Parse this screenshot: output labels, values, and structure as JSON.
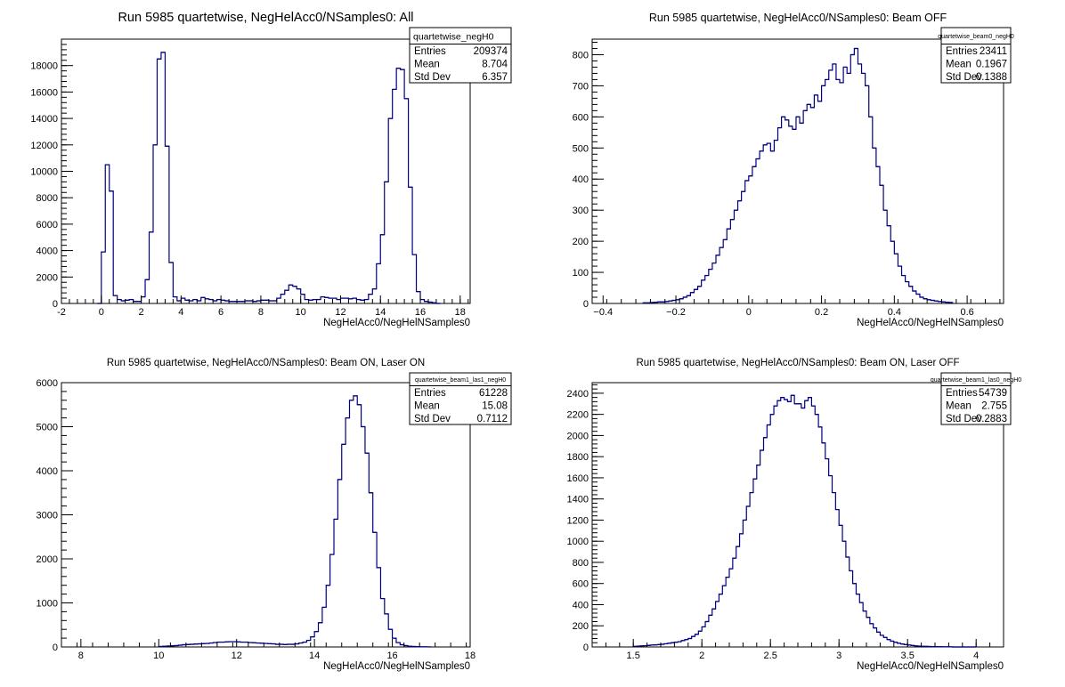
{
  "chart_data": [
    {
      "type": "histogram",
      "title": "Run 5985 quartetwise, NegHelAcc0/NSamples0: All",
      "xlabel": "NegHelAcc0/NegHelNSamples0",
      "xlim": [
        -2,
        18.5
      ],
      "ylim": [
        0,
        20000
      ],
      "xticks": [
        -2,
        0,
        2,
        4,
        6,
        8,
        10,
        12,
        14,
        16,
        18
      ],
      "yticks": [
        0,
        2000,
        4000,
        6000,
        8000,
        10000,
        12000,
        14000,
        16000,
        18000
      ],
      "bin_width": 0.2,
      "x": [
        -0.2,
        0.0,
        0.2,
        0.4,
        0.6,
        0.8,
        1.0,
        1.2,
        1.4,
        1.6,
        1.8,
        2.0,
        2.2,
        2.4,
        2.6,
        2.8,
        3.0,
        3.2,
        3.4,
        3.6,
        3.8,
        4.0,
        4.2,
        4.4,
        4.6,
        4.8,
        5.0,
        5.2,
        5.4,
        5.6,
        5.8,
        6.0,
        6.2,
        6.4,
        6.6,
        6.8,
        7.0,
        7.2,
        7.4,
        7.6,
        7.8,
        8.0,
        8.2,
        8.4,
        8.6,
        8.8,
        9.0,
        9.2,
        9.4,
        9.6,
        9.8,
        10.0,
        10.2,
        10.4,
        10.6,
        10.8,
        11.0,
        11.2,
        11.4,
        11.6,
        11.8,
        12.0,
        12.2,
        12.4,
        12.6,
        12.8,
        13.0,
        13.2,
        13.4,
        13.6,
        13.8,
        14.0,
        14.2,
        14.4,
        14.6,
        14.8,
        15.0,
        15.2,
        15.4,
        15.6,
        15.8,
        16.0,
        16.2,
        16.4,
        16.6,
        16.8
      ],
      "values": [
        0,
        3900,
        10500,
        8500,
        600,
        300,
        200,
        250,
        300,
        150,
        150,
        500,
        1800,
        5400,
        12000,
        18500,
        19000,
        11900,
        3100,
        500,
        200,
        400,
        250,
        200,
        300,
        200,
        450,
        350,
        300,
        200,
        300,
        250,
        200,
        150,
        150,
        150,
        150,
        200,
        200,
        150,
        200,
        250,
        250,
        200,
        200,
        400,
        700,
        1000,
        1400,
        1300,
        1100,
        700,
        300,
        250,
        300,
        300,
        500,
        450,
        400,
        400,
        300,
        400,
        400,
        350,
        400,
        300,
        250,
        300,
        700,
        1100,
        3000,
        5200,
        9200,
        14000,
        16200,
        17800,
        17700,
        15500,
        8800,
        3700,
        900,
        300,
        150,
        100,
        50,
        0
      ],
      "stats": {
        "name": "quartetwise_negH0",
        "rows": [
          [
            "Entries",
            "209374"
          ],
          [
            "Mean",
            "8.704"
          ],
          [
            "Std Dev",
            "6.357"
          ]
        ]
      }
    },
    {
      "type": "histogram",
      "title": "Run 5985 quartetwise, NegHelAcc0/NSamples0: Beam OFF",
      "xlabel": "NegHelAcc0/NegHelNSamples0",
      "xlim": [
        -0.43,
        0.7
      ],
      "ylim": [
        0,
        850
      ],
      "xticks": [
        -0.4,
        -0.2,
        0,
        0.2,
        0.4,
        0.6
      ],
      "xtick_labels": [
        "−0.4",
        "−0.2",
        "0",
        "0.2",
        "0.4",
        "0.6"
      ],
      "yticks": [
        0,
        100,
        200,
        300,
        400,
        500,
        600,
        700,
        800
      ],
      "bin_width": 0.01,
      "x": [
        -0.29,
        -0.28,
        -0.27,
        -0.26,
        -0.25,
        -0.24,
        -0.23,
        -0.22,
        -0.21,
        -0.2,
        -0.19,
        -0.18,
        -0.17,
        -0.16,
        -0.15,
        -0.14,
        -0.13,
        -0.12,
        -0.11,
        -0.1,
        -0.09,
        -0.08,
        -0.07,
        -0.06,
        -0.05,
        -0.04,
        -0.03,
        -0.02,
        -0.01,
        0.0,
        0.01,
        0.02,
        0.03,
        0.04,
        0.05,
        0.06,
        0.07,
        0.08,
        0.09,
        0.1,
        0.11,
        0.12,
        0.13,
        0.14,
        0.15,
        0.16,
        0.17,
        0.18,
        0.19,
        0.2,
        0.21,
        0.22,
        0.23,
        0.24,
        0.25,
        0.26,
        0.27,
        0.28,
        0.29,
        0.3,
        0.31,
        0.32,
        0.33,
        0.34,
        0.35,
        0.36,
        0.37,
        0.38,
        0.39,
        0.4,
        0.41,
        0.42,
        0.43,
        0.44,
        0.45,
        0.46,
        0.47,
        0.48,
        0.49,
        0.5,
        0.51,
        0.52,
        0.53,
        0.54,
        0.55
      ],
      "values": [
        2,
        2,
        3,
        4,
        5,
        5,
        6,
        8,
        10,
        12,
        15,
        20,
        25,
        35,
        45,
        55,
        75,
        90,
        110,
        130,
        155,
        180,
        205,
        240,
        270,
        300,
        330,
        360,
        395,
        410,
        440,
        465,
        490,
        510,
        515,
        490,
        525,
        565,
        600,
        590,
        570,
        560,
        600,
        580,
        620,
        640,
        630,
        670,
        650,
        700,
        720,
        750,
        770,
        720,
        710,
        760,
        740,
        800,
        820,
        770,
        740,
        700,
        600,
        500,
        440,
        380,
        300,
        250,
        200,
        160,
        120,
        90,
        70,
        55,
        40,
        30,
        20,
        15,
        12,
        10,
        8,
        6,
        5,
        4,
        3
      ],
      "stats": {
        "name": "quartetwise_beam0_negH0",
        "rows": [
          [
            "Entries",
            "23411"
          ],
          [
            "Mean",
            "0.1967"
          ],
          [
            "Std Dev",
            "0.1388"
          ]
        ]
      }
    },
    {
      "type": "histogram",
      "title": "Run 5985 quartetwise, NegHelAcc0/NSamples0: Beam ON, Laser ON",
      "xlabel": "NegHelAcc0/NegHelNSamples0",
      "xlim": [
        7.5,
        18
      ],
      "ylim": [
        0,
        6000
      ],
      "xticks": [
        8,
        10,
        12,
        14,
        16,
        18
      ],
      "yticks": [
        0,
        1000,
        2000,
        3000,
        4000,
        5000,
        6000
      ],
      "bin_width": 0.1,
      "x": [
        10.0,
        10.1,
        10.2,
        10.3,
        10.4,
        10.5,
        10.6,
        10.7,
        10.8,
        10.9,
        11.0,
        11.1,
        11.2,
        11.3,
        11.4,
        11.5,
        11.6,
        11.7,
        11.8,
        11.9,
        12.0,
        12.1,
        12.2,
        12.3,
        12.4,
        12.5,
        12.6,
        12.7,
        12.8,
        12.9,
        13.0,
        13.1,
        13.2,
        13.3,
        13.4,
        13.5,
        13.6,
        13.7,
        13.8,
        13.9,
        14.0,
        14.1,
        14.2,
        14.3,
        14.4,
        14.5,
        14.6,
        14.7,
        14.8,
        14.9,
        15.0,
        15.1,
        15.2,
        15.3,
        15.4,
        15.5,
        15.6,
        15.7,
        15.8,
        15.9,
        16.0,
        16.1,
        16.2,
        16.3,
        16.4,
        16.5,
        16.6,
        16.7,
        16.8,
        16.9
      ],
      "values": [
        10,
        15,
        20,
        25,
        30,
        40,
        50,
        55,
        60,
        65,
        70,
        75,
        80,
        90,
        100,
        110,
        110,
        115,
        120,
        120,
        115,
        110,
        110,
        100,
        95,
        90,
        85,
        80,
        75,
        70,
        60,
        60,
        55,
        60,
        60,
        70,
        90,
        110,
        150,
        230,
        350,
        550,
        900,
        1400,
        2100,
        2900,
        3800,
        4600,
        5200,
        5600,
        5700,
        5500,
        5000,
        4400,
        3500,
        2600,
        1800,
        1100,
        750,
        400,
        200,
        100,
        50,
        30,
        15,
        10,
        5,
        3,
        2,
        1
      ],
      "stats": {
        "name": "quartetwise_beam1_las1_negH0",
        "rows": [
          [
            "Entries",
            "61228"
          ],
          [
            "Mean",
            "15.08"
          ],
          [
            "Std Dev",
            "0.7112"
          ]
        ]
      }
    },
    {
      "type": "histogram",
      "title": "Run 5985 quartetwise, NegHelAcc0/NSamples0: Beam ON, Laser OFF",
      "xlabel": "NegHelAcc0/NegHelNSamples0",
      "xlim": [
        1.2,
        4.2
      ],
      "ylim": [
        0,
        2500
      ],
      "xticks": [
        1.5,
        2,
        2.5,
        3,
        3.5,
        4
      ],
      "yticks": [
        0,
        200,
        400,
        600,
        800,
        1000,
        1200,
        1400,
        1600,
        1800,
        2000,
        2200,
        2400
      ],
      "bin_width": 0.025,
      "x": [
        1.5,
        1.525,
        1.55,
        1.575,
        1.6,
        1.625,
        1.65,
        1.675,
        1.7,
        1.725,
        1.75,
        1.775,
        1.8,
        1.825,
        1.85,
        1.875,
        1.9,
        1.925,
        1.95,
        1.975,
        2.0,
        2.025,
        2.05,
        2.075,
        2.1,
        2.125,
        2.15,
        2.175,
        2.2,
        2.225,
        2.25,
        2.275,
        2.3,
        2.325,
        2.35,
        2.375,
        2.4,
        2.425,
        2.45,
        2.475,
        2.5,
        2.525,
        2.55,
        2.575,
        2.6,
        2.625,
        2.65,
        2.675,
        2.7,
        2.725,
        2.75,
        2.775,
        2.8,
        2.825,
        2.85,
        2.875,
        2.9,
        2.925,
        2.95,
        2.975,
        3.0,
        3.025,
        3.05,
        3.075,
        3.1,
        3.125,
        3.15,
        3.175,
        3.2,
        3.225,
        3.25,
        3.275,
        3.3,
        3.325,
        3.35,
        3.375,
        3.4,
        3.425,
        3.45,
        3.475,
        3.5,
        3.525,
        3.55,
        3.575,
        3.6,
        3.625,
        3.65,
        3.675,
        3.7,
        3.725,
        3.75,
        3.775,
        3.8,
        3.825,
        3.85,
        3.875,
        3.9,
        3.925,
        3.95,
        3.975
      ],
      "values": [
        5,
        8,
        10,
        12,
        15,
        18,
        20,
        22,
        25,
        30,
        35,
        40,
        45,
        50,
        60,
        70,
        80,
        100,
        120,
        150,
        190,
        240,
        300,
        360,
        430,
        500,
        580,
        660,
        740,
        840,
        950,
        1070,
        1200,
        1330,
        1460,
        1590,
        1720,
        1860,
        1980,
        2100,
        2200,
        2280,
        2330,
        2360,
        2340,
        2320,
        2380,
        2300,
        2300,
        2260,
        2330,
        2360,
        2280,
        2200,
        2080,
        1930,
        1780,
        1620,
        1460,
        1300,
        1150,
        1000,
        850,
        720,
        600,
        500,
        420,
        340,
        280,
        220,
        180,
        140,
        110,
        90,
        70,
        55,
        45,
        35,
        28,
        22,
        18,
        14,
        10,
        8,
        6,
        5,
        4,
        3,
        2,
        2,
        1,
        1,
        1,
        0,
        0,
        0,
        0,
        0,
        0,
        0
      ],
      "stats": {
        "name": "quartetwise_beam1_las0_negH0",
        "rows": [
          [
            "Entries",
            "54739"
          ],
          [
            "Mean",
            "2.755"
          ],
          [
            "Std Dev",
            "0.2883"
          ]
        ]
      }
    }
  ]
}
